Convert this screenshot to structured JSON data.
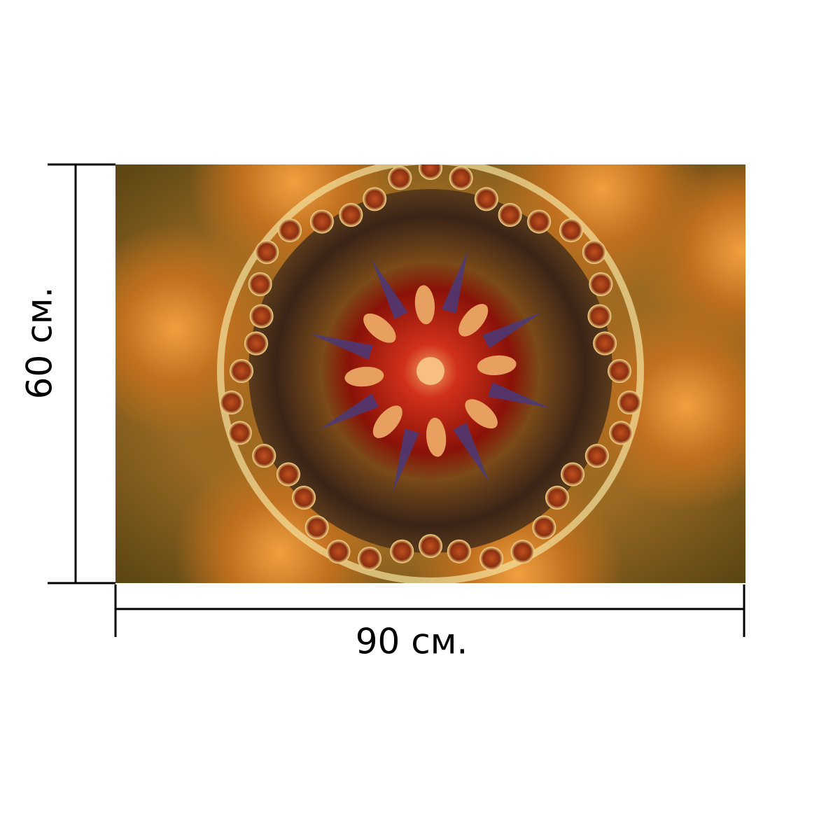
{
  "dimensions": {
    "width": "90 см.",
    "height": "60 см."
  }
}
